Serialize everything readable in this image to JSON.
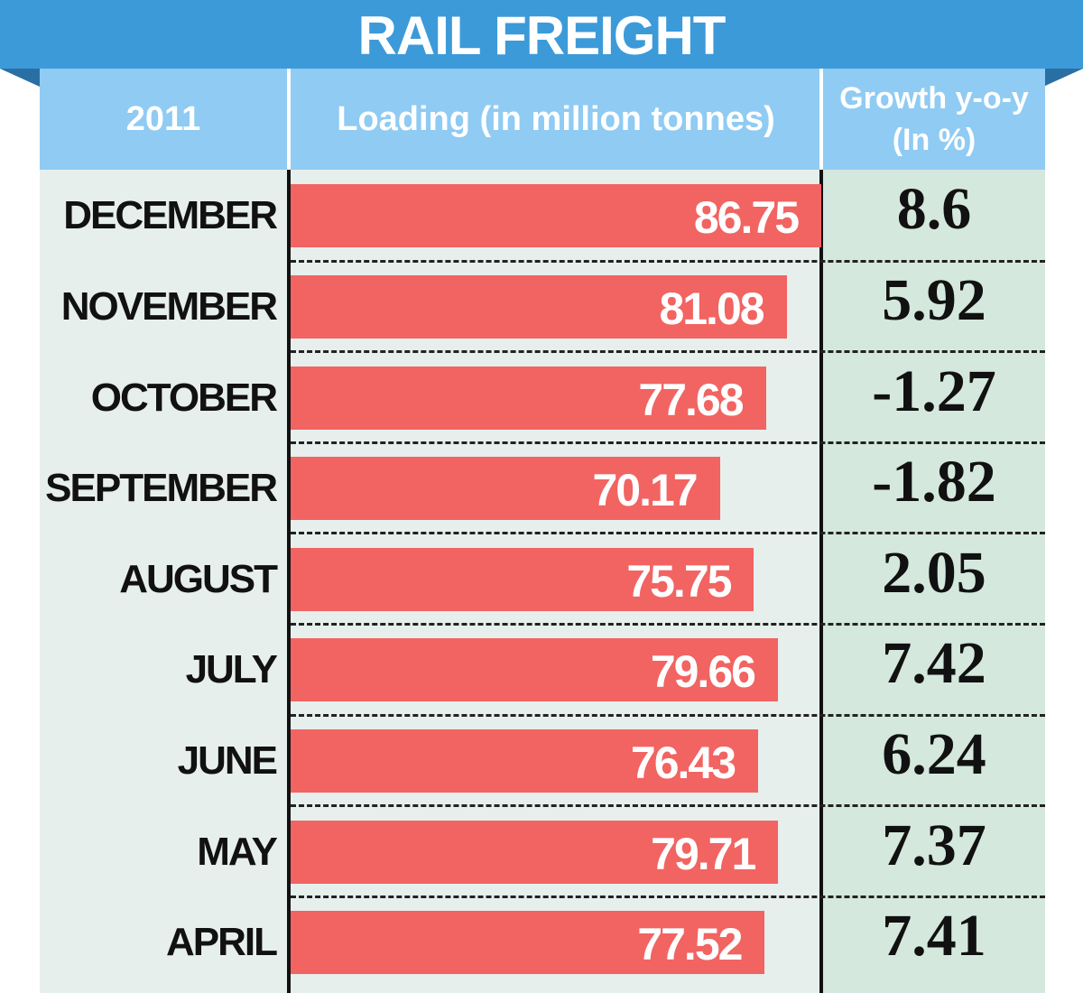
{
  "chart_data": {
    "type": "bar",
    "title": "RAIL FREIGHT",
    "header": {
      "period": "2011",
      "loading": "Loading (in million tonnes)",
      "growth_line1": "Growth y-o-y",
      "growth_line2": "(In %)"
    },
    "categories": [
      "DECEMBER",
      "NOVEMBER",
      "OCTOBER",
      "SEPTEMBER",
      "AUGUST",
      "JULY",
      "JUNE",
      "MAY",
      "APRIL"
    ],
    "series": [
      {
        "values": [
          86.75,
          81.08,
          77.68,
          70.17,
          75.75,
          79.66,
          76.43,
          79.71,
          77.52
        ]
      },
      {
        "values": [
          8.6,
          5.92,
          -1.27,
          -1.82,
          2.05,
          7.42,
          6.24,
          7.37,
          7.41
        ]
      }
    ],
    "value_labels": {
      "loading": [
        "86.75",
        "81.08",
        "77.68",
        "70.17",
        "75.75",
        "79.66",
        "76.43",
        "79.71",
        "77.52"
      ],
      "growth": [
        "8.6",
        "5.92",
        "-1.27",
        "-1.82",
        "2.05",
        "7.42",
        "6.24",
        "7.37",
        "7.41"
      ]
    },
    "colors": {
      "banner": "#3c9ad9",
      "header": "#8fcbf3",
      "bar": "#f16462",
      "panel": "#e6efec",
      "growth_column": "#d4e8de"
    },
    "orientation": "horizontal"
  }
}
